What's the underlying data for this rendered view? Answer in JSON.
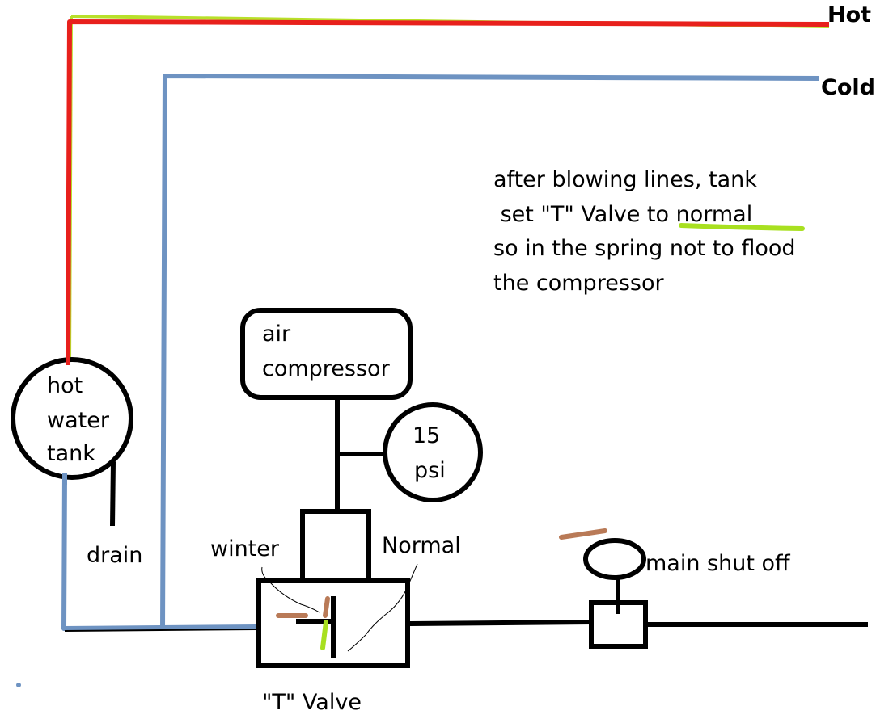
{
  "colors": {
    "hot_line": "#e8201c",
    "hot_highlight": "#b8e02a",
    "cold_line": "#6e93c2",
    "outline": "#000000",
    "handle": "#b97a57",
    "green_mark": "#a8e020",
    "background": "#ffffff"
  },
  "labels": {
    "hot": "Hot",
    "cold": "Cold",
    "air_compressor_line1": "air",
    "air_compressor_line2": "compressor",
    "gauge_line1": "15",
    "gauge_line2": "psi",
    "tank_line1": "hot",
    "tank_line2": "water",
    "tank_line3": "tank",
    "drain": "drain",
    "winter": "winter",
    "normal": "Normal",
    "main_shut_off": "main shut off",
    "t_valve": "\"T\" Valve"
  },
  "note": {
    "line1": "after blowing lines, tank",
    "line2_prefix": " set \"T\" Valve to ",
    "line2_emphasis": "normal",
    "line3": "so in the spring not to flood",
    "line4": "the compressor"
  }
}
